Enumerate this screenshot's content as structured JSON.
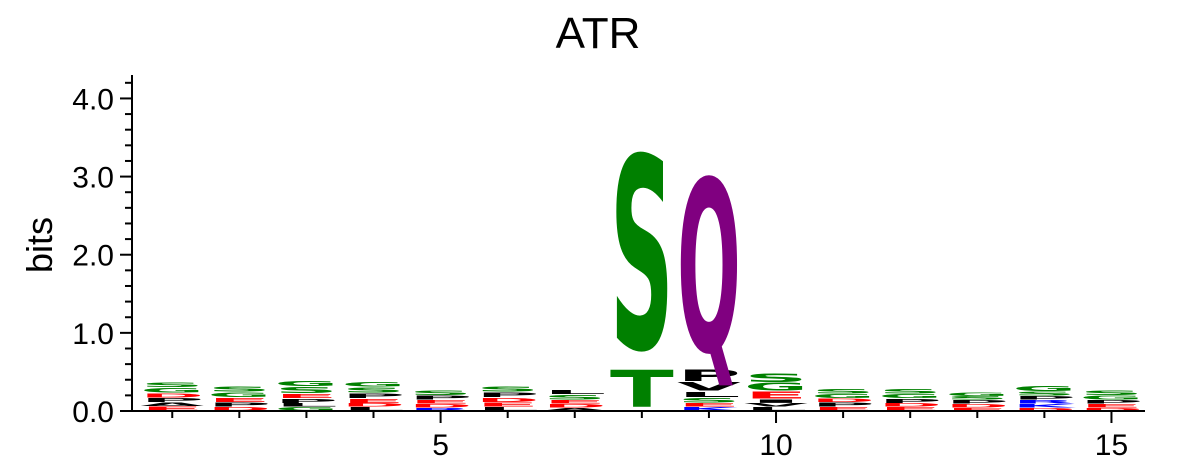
{
  "chart_data": {
    "type": "sequence-logo",
    "title": "ATR",
    "ylabel": "bits",
    "xlabel": "",
    "ylim": [
      0,
      4.3
    ],
    "xlim": [
      0.4,
      15.5
    ],
    "y_ticks": [
      "0.0",
      "1.0",
      "2.0",
      "3.0",
      "4.0"
    ],
    "x_ticks": [
      "5",
      "10",
      "15"
    ],
    "x_tick_values": [
      5,
      10,
      15
    ],
    "y_tick_values": [
      0,
      1,
      2,
      3,
      4
    ],
    "grid": false,
    "colors": {
      "S": "#008000",
      "T": "#008000",
      "G": "#008000",
      "Y": "#008000",
      "C": "#008000",
      "N": "#008000",
      "Q": "#800080",
      "P": "#000000",
      "V": "#000000",
      "L": "#000000",
      "I": "#000000",
      "A": "#000000",
      "F": "#000000",
      "M": "#000000",
      "W": "#000000",
      "E": "#ff0000",
      "D": "#ff0000",
      "K": "#0000ff",
      "R": "#0000ff",
      "H": "#0000ff"
    },
    "positions": [
      {
        "pos": 1,
        "letters": [
          {
            "aa": "E",
            "bits": 0.06
          },
          {
            "aa": "A",
            "bits": 0.05
          },
          {
            "aa": "P",
            "bits": 0.06
          },
          {
            "aa": "D",
            "bits": 0.06
          },
          {
            "aa": "G",
            "bits": 0.07
          },
          {
            "aa": "S",
            "bits": 0.07
          }
        ]
      },
      {
        "pos": 2,
        "letters": [
          {
            "aa": "D",
            "bits": 0.05
          },
          {
            "aa": "P",
            "bits": 0.06
          },
          {
            "aa": "E",
            "bits": 0.06
          },
          {
            "aa": "G",
            "bits": 0.07
          },
          {
            "aa": "S",
            "bits": 0.08
          }
        ]
      },
      {
        "pos": 3,
        "letters": [
          {
            "aa": "G",
            "bits": 0.05
          },
          {
            "aa": "L",
            "bits": 0.05
          },
          {
            "aa": "P",
            "bits": 0.06
          },
          {
            "aa": "E",
            "bits": 0.06
          },
          {
            "aa": "S",
            "bits": 0.09
          },
          {
            "aa": "G",
            "bits": 0.08
          }
        ]
      },
      {
        "pos": 4,
        "letters": [
          {
            "aa": "L",
            "bits": 0.05
          },
          {
            "aa": "D",
            "bits": 0.05
          },
          {
            "aa": "E",
            "bits": 0.06
          },
          {
            "aa": "P",
            "bits": 0.07
          },
          {
            "aa": "S",
            "bits": 0.08
          },
          {
            "aa": "G",
            "bits": 0.07
          }
        ]
      },
      {
        "pos": 5,
        "letters": [
          {
            "aa": "R",
            "bits": 0.04
          },
          {
            "aa": "D",
            "bits": 0.05
          },
          {
            "aa": "E",
            "bits": 0.05
          },
          {
            "aa": "P",
            "bits": 0.06
          },
          {
            "aa": "S",
            "bits": 0.07
          }
        ]
      },
      {
        "pos": 6,
        "letters": [
          {
            "aa": "L",
            "bits": 0.05
          },
          {
            "aa": "E",
            "bits": 0.06
          },
          {
            "aa": "D",
            "bits": 0.06
          },
          {
            "aa": "P",
            "bits": 0.07
          },
          {
            "aa": "S",
            "bits": 0.08
          }
        ]
      },
      {
        "pos": 7,
        "letters": [
          {
            "aa": "A",
            "bits": 0.04
          },
          {
            "aa": "D",
            "bits": 0.05
          },
          {
            "aa": "E",
            "bits": 0.05
          },
          {
            "aa": "S",
            "bits": 0.07
          },
          {
            "aa": "L",
            "bits": 0.06
          }
        ]
      },
      {
        "pos": 8,
        "letters": [
          {
            "aa": "T",
            "bits": 0.55
          },
          {
            "aa": "S",
            "bits": 2.85
          }
        ]
      },
      {
        "pos": 9,
        "letters": [
          {
            "aa": "K",
            "bits": 0.05
          },
          {
            "aa": "E",
            "bits": 0.05
          },
          {
            "aa": "S",
            "bits": 0.07
          },
          {
            "aa": "L",
            "bits": 0.08
          },
          {
            "aa": "V",
            "bits": 0.12
          },
          {
            "aa": "P",
            "bits": 0.17
          },
          {
            "aa": "Q",
            "bits": 2.55
          }
        ]
      },
      {
        "pos": 10,
        "letters": [
          {
            "aa": "L",
            "bits": 0.05
          },
          {
            "aa": "V",
            "bits": 0.05
          },
          {
            "aa": "I",
            "bits": 0.05
          },
          {
            "aa": "E",
            "bits": 0.1
          },
          {
            "aa": "G",
            "bits": 0.11
          },
          {
            "aa": "S",
            "bits": 0.12
          }
        ]
      },
      {
        "pos": 11,
        "letters": [
          {
            "aa": "E",
            "bits": 0.05
          },
          {
            "aa": "P",
            "bits": 0.06
          },
          {
            "aa": "D",
            "bits": 0.05
          },
          {
            "aa": "G",
            "bits": 0.06
          },
          {
            "aa": "S",
            "bits": 0.07
          }
        ]
      },
      {
        "pos": 12,
        "letters": [
          {
            "aa": "E",
            "bits": 0.05
          },
          {
            "aa": "D",
            "bits": 0.05
          },
          {
            "aa": "P",
            "bits": 0.06
          },
          {
            "aa": "G",
            "bits": 0.06
          },
          {
            "aa": "S",
            "bits": 0.07
          }
        ]
      },
      {
        "pos": 13,
        "letters": [
          {
            "aa": "E",
            "bits": 0.04
          },
          {
            "aa": "D",
            "bits": 0.05
          },
          {
            "aa": "P",
            "bits": 0.05
          },
          {
            "aa": "S",
            "bits": 0.05
          },
          {
            "aa": "G",
            "bits": 0.05
          }
        ]
      },
      {
        "pos": 14,
        "letters": [
          {
            "aa": "D",
            "bits": 0.04
          },
          {
            "aa": "K",
            "bits": 0.05
          },
          {
            "aa": "R",
            "bits": 0.05
          },
          {
            "aa": "P",
            "bits": 0.05
          },
          {
            "aa": "S",
            "bits": 0.06
          },
          {
            "aa": "G",
            "bits": 0.08
          }
        ]
      },
      {
        "pos": 15,
        "letters": [
          {
            "aa": "D",
            "bits": 0.04
          },
          {
            "aa": "E",
            "bits": 0.05
          },
          {
            "aa": "P",
            "bits": 0.05
          },
          {
            "aa": "G",
            "bits": 0.06
          },
          {
            "aa": "S",
            "bits": 0.07
          }
        ]
      }
    ]
  }
}
